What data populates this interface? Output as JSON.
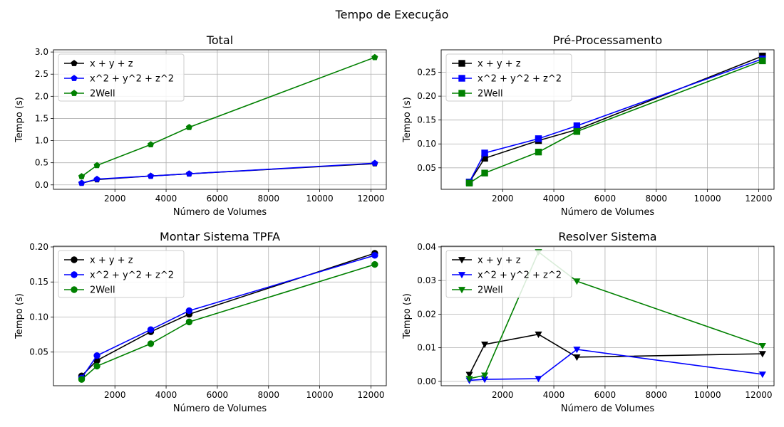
{
  "figure": {
    "title": "Tempo de Execução"
  },
  "series_styles": [
    {
      "name": "x + y + z",
      "color": "#000000"
    },
    {
      "name": "x^2 + y^2 + z^2",
      "color": "#0000ff"
    },
    {
      "name": "2Well",
      "color": "#008000"
    }
  ],
  "chart_data": [
    {
      "type": "line",
      "title": "Total",
      "xlabel": "Número de Volumes",
      "ylabel": "Tempo (s)",
      "marker": "pentagon",
      "xlim": [
        -400,
        12600
      ],
      "ylim": [
        -0.1,
        3.05
      ],
      "xticks": [
        2000,
        4000,
        6000,
        8000,
        10000,
        12000
      ],
      "yticks": [
        0.0,
        0.5,
        1.0,
        1.5,
        2.0,
        2.5,
        3.0
      ],
      "ytick_decimals": 1,
      "legend": "top-left",
      "x": [
        700,
        1300,
        3400,
        4900,
        12150
      ],
      "series": [
        {
          "name": "x + y + z",
          "values": [
            0.04,
            0.12,
            0.2,
            0.25,
            0.48
          ]
        },
        {
          "name": "x^2 + y^2 + z^2",
          "values": [
            0.04,
            0.13,
            0.2,
            0.25,
            0.49
          ]
        },
        {
          "name": "2Well",
          "values": [
            0.19,
            0.44,
            0.91,
            1.3,
            2.88
          ]
        }
      ]
    },
    {
      "type": "line",
      "title": "Pré-Processamento",
      "xlabel": "Número de Volumes",
      "ylabel": "Tempo (s)",
      "marker": "square",
      "xlim": [
        -400,
        12600
      ],
      "ylim": [
        0.005,
        0.297
      ],
      "xticks": [
        2000,
        4000,
        6000,
        8000,
        10000,
        12000
      ],
      "yticks": [
        0.05,
        0.1,
        0.15,
        0.2,
        0.25
      ],
      "ytick_decimals": 2,
      "legend": "top-left",
      "x": [
        700,
        1300,
        3400,
        4900,
        12150
      ],
      "series": [
        {
          "name": "x + y + z",
          "values": [
            0.02,
            0.07,
            0.107,
            0.13,
            0.284
          ]
        },
        {
          "name": "x^2 + y^2 + z^2",
          "values": [
            0.02,
            0.081,
            0.111,
            0.138,
            0.278
          ]
        },
        {
          "name": "2Well",
          "values": [
            0.018,
            0.039,
            0.083,
            0.126,
            0.274
          ]
        }
      ]
    },
    {
      "type": "line",
      "title": "Montar Sistema TPFA",
      "xlabel": "Número de Volumes",
      "ylabel": "Tempo (s)",
      "marker": "circle",
      "xlim": [
        -400,
        12600
      ],
      "ylim": [
        0.002,
        0.201
      ],
      "xticks": [
        2000,
        4000,
        6000,
        8000,
        10000,
        12000
      ],
      "yticks": [
        0.05,
        0.1,
        0.15,
        0.2
      ],
      "ytick_decimals": 2,
      "legend": "top-left",
      "x": [
        700,
        1300,
        3400,
        4900,
        12150
      ],
      "series": [
        {
          "name": "x + y + z",
          "values": [
            0.016,
            0.038,
            0.079,
            0.104,
            0.191
          ]
        },
        {
          "name": "x^2 + y^2 + z^2",
          "values": [
            0.013,
            0.045,
            0.082,
            0.109,
            0.188
          ]
        },
        {
          "name": "2Well",
          "values": [
            0.011,
            0.03,
            0.062,
            0.093,
            0.175
          ]
        }
      ]
    },
    {
      "type": "line",
      "title": "Resolver Sistema",
      "xlabel": "Número de Volumes",
      "ylabel": "Tempo (s)",
      "marker": "triangle_down",
      "xlim": [
        -400,
        12600
      ],
      "ylim": [
        -0.0013,
        0.0402
      ],
      "xticks": [
        2000,
        4000,
        6000,
        8000,
        10000,
        12000
      ],
      "yticks": [
        0.0,
        0.01,
        0.02,
        0.03,
        0.04
      ],
      "ytick_decimals": 2,
      "legend": "top-left",
      "x": [
        700,
        1300,
        3400,
        4900,
        12150
      ],
      "series": [
        {
          "name": "x + y + z",
          "values": [
            0.002,
            0.011,
            0.014,
            0.0072,
            0.0082
          ]
        },
        {
          "name": "x^2 + y^2 + z^2",
          "values": [
            0.0003,
            0.0006,
            0.0008,
            0.0095,
            0.0021
          ]
        },
        {
          "name": "2Well",
          "values": [
            0.0008,
            0.0018,
            0.0385,
            0.0298,
            0.0106
          ]
        }
      ]
    }
  ]
}
